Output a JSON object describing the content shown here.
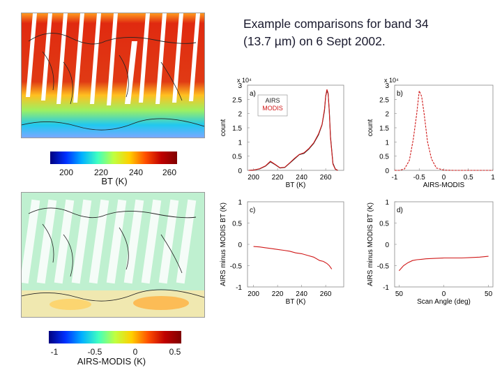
{
  "slide": {
    "title_line1": "Example comparisons for band 34",
    "title_line2": "(13.7 µm) on 6 Sept 2002."
  },
  "colorbars": [
    {
      "label": "BT (K)",
      "ticks": [
        "200",
        "220",
        "240",
        "260"
      ],
      "colors": [
        "#00007f",
        "#0030ff",
        "#00b0ff",
        "#40ffc0",
        "#c0ff40",
        "#ffd000",
        "#ff5000",
        "#c00000",
        "#7f0000"
      ]
    },
    {
      "label": "AIRS-MODIS (K)",
      "ticks": [
        "-1",
        "-0.5",
        "0",
        "0.5"
      ],
      "colors": [
        "#00007f",
        "#0030ff",
        "#00b0ff",
        "#40ffc0",
        "#c0ff40",
        "#ffd000",
        "#ff5000",
        "#c00000",
        "#7f0000"
      ]
    }
  ],
  "chart_data": [
    {
      "type": "line",
      "panel": "a)",
      "xlabel": "BT (K)",
      "ylabel": "count",
      "exponent": "x 10⁴",
      "xlim": [
        195,
        275
      ],
      "ylim": [
        0,
        3
      ],
      "xticks": [
        "200",
        "220",
        "240",
        "260"
      ],
      "yticks": [
        "0",
        "0.5",
        "1",
        "1.5",
        "2",
        "2.5",
        "3"
      ],
      "legend": [
        "AIRS",
        "MODIS"
      ],
      "series": [
        {
          "name": "AIRS",
          "color": "#222222",
          "x": [
            196,
            200,
            205,
            210,
            214,
            218,
            222,
            226,
            230,
            234,
            238,
            242,
            246,
            250,
            254,
            257,
            259,
            260,
            261,
            262,
            263,
            264,
            266,
            268,
            270
          ],
          "y": [
            0,
            0.01,
            0.05,
            0.15,
            0.3,
            0.2,
            0.08,
            0.1,
            0.25,
            0.4,
            0.55,
            0.6,
            0.75,
            0.95,
            1.25,
            1.6,
            2.1,
            2.6,
            2.8,
            2.7,
            2.1,
            1.2,
            0.25,
            0.05,
            0
          ]
        },
        {
          "name": "MODIS",
          "color": "#d01818",
          "x": [
            196,
            200,
            205,
            210,
            214,
            218,
            222,
            226,
            230,
            234,
            238,
            242,
            246,
            250,
            254,
            257,
            259,
            260,
            261,
            262,
            263,
            264,
            266,
            268,
            270
          ],
          "y": [
            0,
            0.01,
            0.06,
            0.16,
            0.32,
            0.21,
            0.09,
            0.11,
            0.26,
            0.42,
            0.56,
            0.62,
            0.77,
            0.97,
            1.28,
            1.62,
            2.15,
            2.62,
            2.85,
            2.72,
            2.05,
            1.15,
            0.22,
            0.04,
            0
          ]
        }
      ]
    },
    {
      "type": "line",
      "panel": "b)",
      "xlabel": "AIRS-MODIS",
      "ylabel": "count",
      "exponent": "x 10⁴",
      "xlim": [
        -1,
        1
      ],
      "ylim": [
        0,
        3
      ],
      "xticks": [
        "-1",
        "-0.5",
        "0",
        "0.5",
        "1"
      ],
      "yticks": [
        "0",
        "0.5",
        "1",
        "1.5",
        "2",
        "2.5",
        "3"
      ],
      "series": [
        {
          "color": "#d01818",
          "x": [
            -1,
            -0.9,
            -0.8,
            -0.7,
            -0.62,
            -0.55,
            -0.5,
            -0.45,
            -0.4,
            -0.33,
            -0.25,
            -0.15,
            0,
            0.2,
            0.5,
            1
          ],
          "y": [
            0,
            0,
            0.05,
            0.35,
            1.1,
            2.0,
            2.8,
            2.6,
            2.0,
            1.0,
            0.4,
            0.08,
            0.01,
            0,
            0,
            0
          ]
        }
      ]
    },
    {
      "type": "line",
      "panel": "c)",
      "xlabel": "BT (K)",
      "ylabel": "AIRS minus MODIS BT (K)",
      "xlim": [
        195,
        275
      ],
      "ylim": [
        -1,
        1
      ],
      "xticks": [
        "200",
        "220",
        "240",
        "260"
      ],
      "yticks": [
        "-1",
        "-0.5",
        "0",
        "0.5",
        "1"
      ],
      "series": [
        {
          "color": "#d01818",
          "x": [
            200,
            205,
            210,
            215,
            220,
            225,
            230,
            235,
            240,
            245,
            250,
            255,
            258,
            261,
            263,
            265
          ],
          "y": [
            -0.05,
            -0.06,
            -0.08,
            -0.1,
            -0.12,
            -0.14,
            -0.16,
            -0.2,
            -0.22,
            -0.26,
            -0.3,
            -0.38,
            -0.4,
            -0.45,
            -0.5,
            -0.58
          ]
        }
      ]
    },
    {
      "type": "line",
      "panel": "d)",
      "xlabel": "Scan Angle (deg)",
      "ylabel": "AIRS minus MODIS BT (K)",
      "xlim": [
        -55,
        55
      ],
      "ylim": [
        -1,
        1
      ],
      "xticks": [
        "50",
        "0",
        "50"
      ],
      "yticks": [
        "-1",
        "-0.5",
        "0",
        "0.5",
        "1"
      ],
      "series": [
        {
          "color": "#d01818",
          "x": [
            -50,
            -45,
            -40,
            -35,
            -30,
            -25,
            -20,
            -10,
            0,
            10,
            20,
            30,
            40,
            50
          ],
          "y": [
            -0.62,
            -0.5,
            -0.43,
            -0.38,
            -0.36,
            -0.35,
            -0.34,
            -0.33,
            -0.32,
            -0.32,
            -0.32,
            -0.31,
            -0.3,
            -0.28
          ]
        }
      ]
    }
  ]
}
